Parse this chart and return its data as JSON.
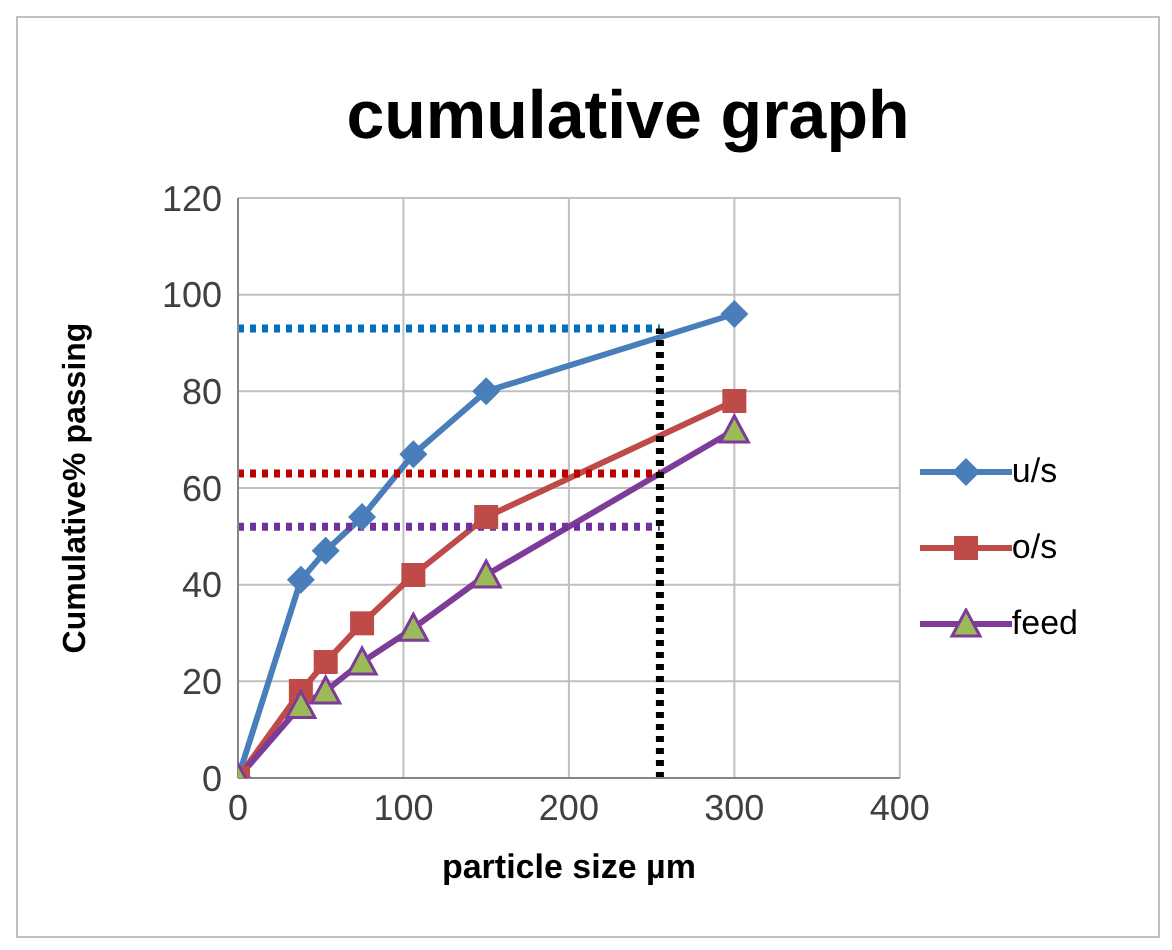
{
  "chart_data": {
    "type": "line",
    "title": "cumulative graph",
    "xlabel": "particle size µm",
    "ylabel": "Cumulative% passing",
    "x": [
      0,
      38,
      53,
      75,
      106,
      150,
      300
    ],
    "series": [
      {
        "name": "u/s",
        "color": "#4a7ebb",
        "marker": "diamond",
        "values": [
          0,
          41,
          47,
          54,
          67,
          80,
          96
        ]
      },
      {
        "name": "o/s",
        "color": "#be4b48",
        "marker": "square",
        "values": [
          0,
          18,
          24,
          32,
          42,
          54,
          78
        ]
      },
      {
        "name": "feed",
        "color": "#7d3c98",
        "marker": "triangle",
        "values": [
          0,
          15,
          18,
          24,
          31,
          42,
          72
        ]
      }
    ],
    "xlim": [
      0,
      400
    ],
    "xticks": [
      0,
      100,
      200,
      300,
      400
    ],
    "ylim": [
      0,
      120
    ],
    "yticks": [
      0,
      20,
      40,
      60,
      80,
      100,
      120
    ],
    "grid": true,
    "legend": "right",
    "ref_lines": [
      {
        "axis": "y",
        "value": 93,
        "color": "#0070c0",
        "line_style": "dotted"
      },
      {
        "axis": "y",
        "value": 63,
        "color": "#c00000",
        "line_style": "dotted"
      },
      {
        "axis": "y",
        "value": 52,
        "color": "#7030a0",
        "line_style": "dotted"
      },
      {
        "axis": "x",
        "value": 255,
        "color": "#000000",
        "line_style": "dotted"
      }
    ]
  }
}
